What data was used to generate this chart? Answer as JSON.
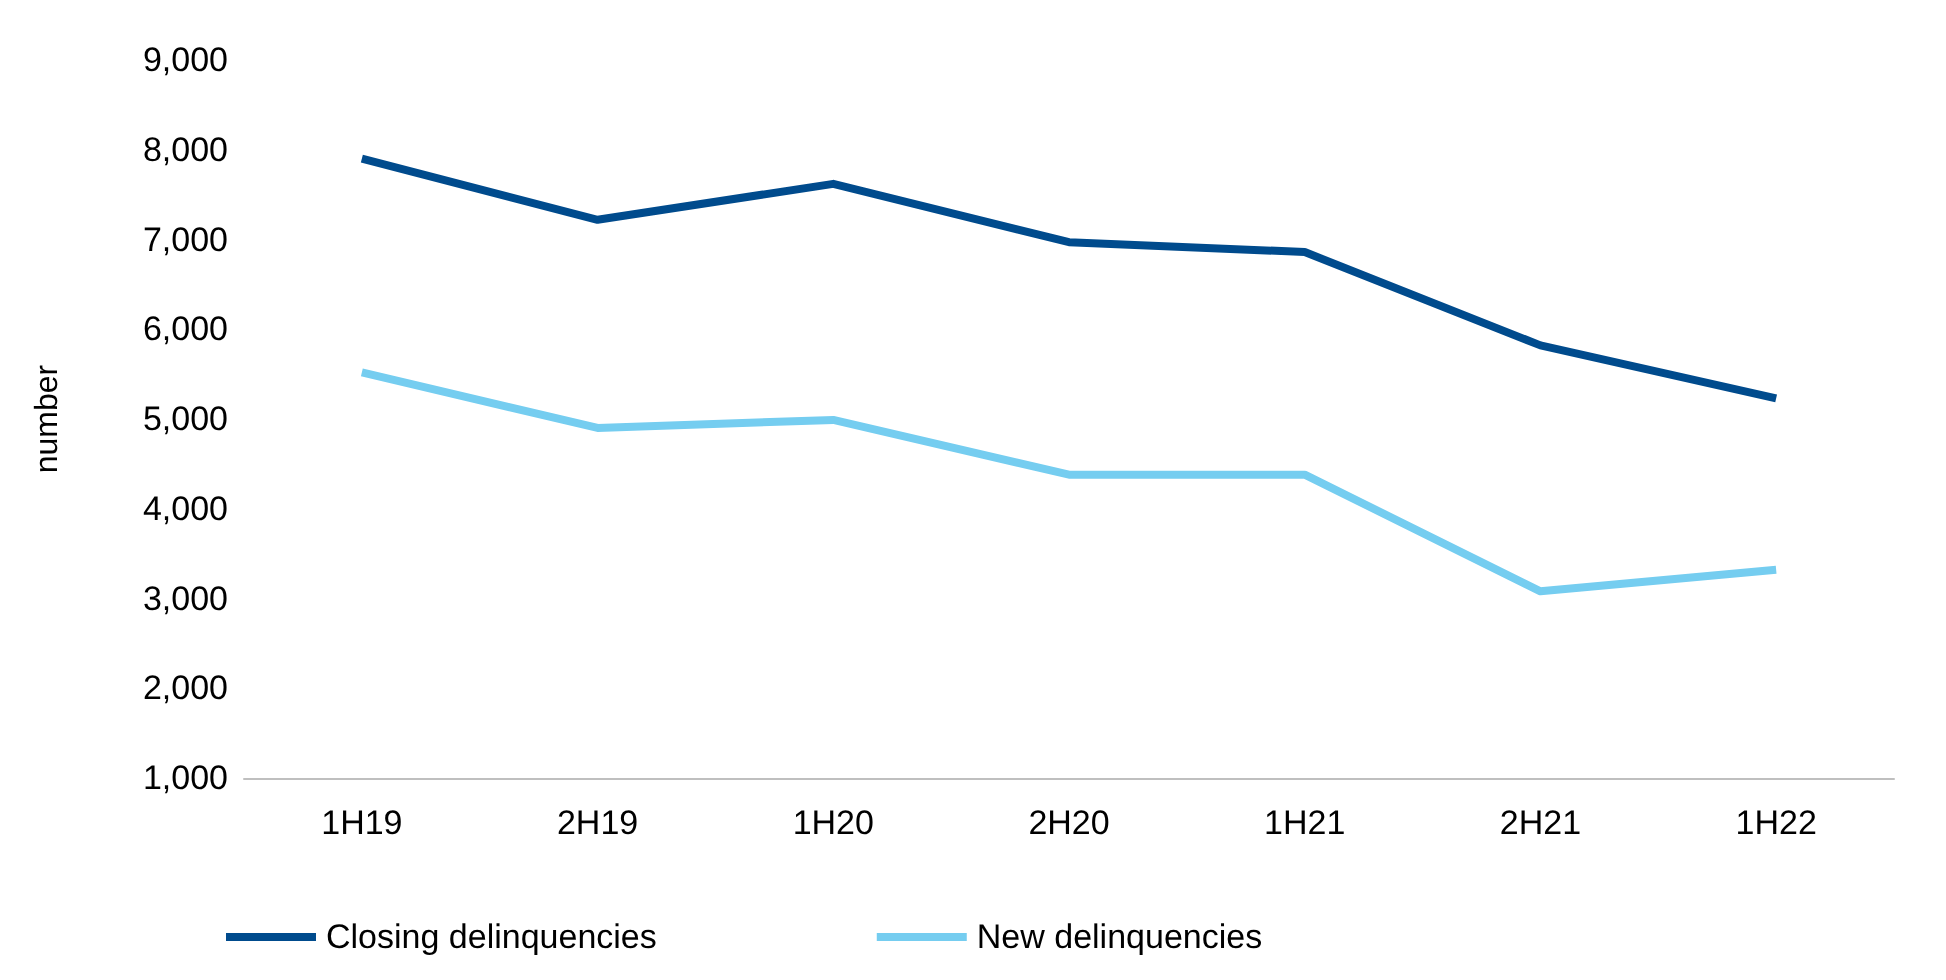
{
  "chart_data": {
    "type": "line",
    "ylabel": "number",
    "categories": [
      "1H19",
      "2H19",
      "1H20",
      "2H20",
      "1H21",
      "2H21",
      "1H22"
    ],
    "series": [
      {
        "name": "Closing delinquencies",
        "color": "#004b8d",
        "values": [
          7900,
          7220,
          7620,
          6970,
          6860,
          5820,
          5230
        ]
      },
      {
        "name": "New delinquencies",
        "color": "#75cdf0",
        "values": [
          5520,
          4900,
          4990,
          4380,
          4380,
          3080,
          3320
        ]
      }
    ],
    "ylim": [
      1000,
      9000
    ],
    "yticks": [
      {
        "value": 1000,
        "label": "1,000"
      },
      {
        "value": 2000,
        "label": "2,000"
      },
      {
        "value": 3000,
        "label": "3,000"
      },
      {
        "value": 4000,
        "label": "4,000"
      },
      {
        "value": 5000,
        "label": "5,000"
      },
      {
        "value": 6000,
        "label": "6,000"
      },
      {
        "value": 7000,
        "label": "7,000"
      },
      {
        "value": 8000,
        "label": "8,000"
      },
      {
        "value": 9000,
        "label": "9,000"
      }
    ],
    "grid": false,
    "legend": "bottom left",
    "marker": "none",
    "line_style": "solid"
  }
}
